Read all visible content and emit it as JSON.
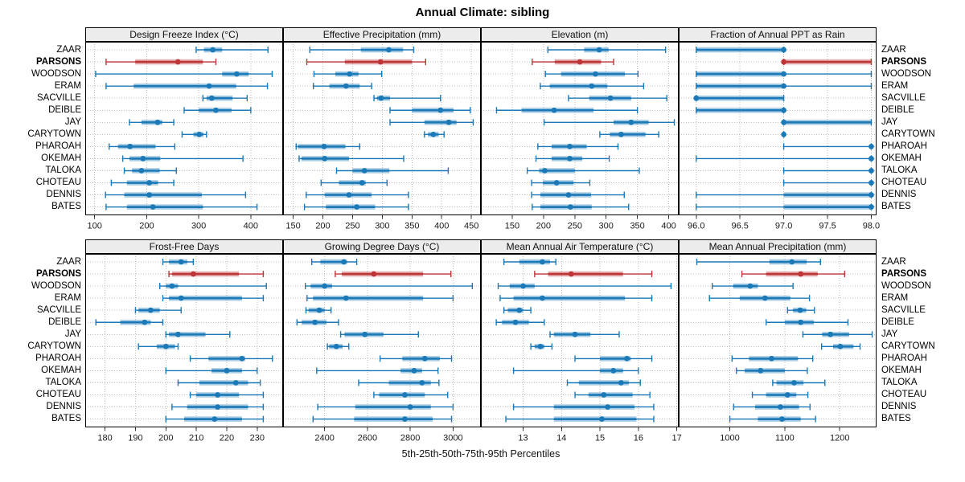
{
  "title": "Annual Climate: sibling",
  "xlabel": "5th-25th-50th-75th-95th Percentiles",
  "stations": [
    "ZAAR",
    "PARSONS",
    "WOODSON",
    "ERAM",
    "SACVILLE",
    "DEIBLE",
    "JAY",
    "CARYTOWN",
    "PHAROAH",
    "OKEMAH",
    "TALOKA",
    "CHOTEAU",
    "DENNIS",
    "BATES"
  ],
  "highlight_station": "PARSONS",
  "percentile_levels": [
    5,
    25,
    50,
    75,
    95
  ],
  "colors": {
    "series": "#1b79b7",
    "highlight": "#be3538",
    "strip_bg": "#ececec",
    "grid": "#bdbdbd",
    "border": "#000000",
    "tick_text": "#1a1a1a"
  },
  "chart_data": {
    "type": "scatter",
    "subtype": "percentile-dotplot-trellis",
    "layout": "2 rows x 4 columns, shared station y-axis, grid on, no legend",
    "row_note": "each row: thin line 5th-95th with end caps, translucent thick band 25th-75th, dot at 50th",
    "panels": [
      {
        "title": "Design Freeze Index (°C)",
        "row": 0,
        "xlim": [
          82,
          462
        ],
        "ticks": [
          100,
          200,
          300,
          400
        ],
        "tick_labels": [
          "100",
          "200",
          "300",
          "400"
        ],
        "values": [
          [
            295,
            310,
            327,
            345,
            433
          ],
          [
            122,
            178,
            260,
            308,
            333
          ],
          [
            102,
            345,
            373,
            396,
            441
          ],
          [
            122,
            175,
            320,
            372,
            432
          ],
          [
            308,
            315,
            325,
            365,
            393
          ],
          [
            272,
            300,
            333,
            363,
            400
          ],
          [
            167,
            190,
            221,
            230,
            252
          ],
          [
            268,
            290,
            301,
            309,
            315
          ],
          [
            128,
            145,
            168,
            217,
            254
          ],
          [
            154,
            167,
            193,
            226,
            385
          ],
          [
            157,
            172,
            190,
            225,
            257
          ],
          [
            132,
            162,
            205,
            222,
            252
          ],
          [
            121,
            157,
            205,
            306,
            390
          ],
          [
            122,
            162,
            212,
            308,
            412
          ]
        ]
      },
      {
        "title": "Effective Precipitation (mm)",
        "row": 0,
        "xlim": [
          133,
          466
        ],
        "ticks": [
          150,
          200,
          250,
          300,
          350,
          400,
          450
        ],
        "tick_labels": [
          "150",
          "200",
          "250",
          "300",
          "350",
          "400",
          "450"
        ],
        "values": [
          [
            178,
            264,
            311,
            335,
            353
          ],
          [
            173,
            237,
            297,
            350,
            373
          ],
          [
            185,
            221,
            245,
            260,
            299
          ],
          [
            184,
            211,
            239,
            262,
            282
          ],
          [
            286,
            291,
            298,
            313,
            398
          ],
          [
            313,
            350,
            398,
            420,
            448
          ],
          [
            313,
            371,
            412,
            425,
            453
          ],
          [
            371,
            377,
            386,
            395,
            404
          ],
          [
            155,
            158,
            202,
            238,
            262
          ],
          [
            160,
            164,
            203,
            244,
            336
          ],
          [
            223,
            250,
            270,
            312,
            411
          ],
          [
            197,
            227,
            266,
            272,
            308
          ],
          [
            172,
            203,
            244,
            282,
            344
          ],
          [
            169,
            205,
            257,
            288,
            344
          ]
        ]
      },
      {
        "title": "Elevation (m)",
        "row": 0,
        "xlim": [
          100,
          416
        ],
        "ticks": [
          150,
          200,
          250,
          300,
          350,
          400
        ],
        "tick_labels": [
          "150",
          "200",
          "250",
          "300",
          "350",
          "400"
        ],
        "values": [
          [
            207,
            265,
            289,
            304,
            395
          ],
          [
            182,
            218,
            258,
            292,
            312
          ],
          [
            203,
            228,
            283,
            330,
            351
          ],
          [
            195,
            210,
            277,
            302,
            360
          ],
          [
            240,
            273,
            307,
            340,
            397
          ],
          [
            125,
            165,
            217,
            280,
            350
          ],
          [
            201,
            312,
            340,
            368,
            409
          ],
          [
            290,
            306,
            324,
            363,
            384
          ],
          [
            191,
            213,
            242,
            269,
            319
          ],
          [
            188,
            213,
            242,
            262,
            305
          ],
          [
            174,
            193,
            202,
            250,
            353
          ],
          [
            181,
            199,
            221,
            248,
            274
          ],
          [
            181,
            195,
            240,
            276,
            329
          ],
          [
            182,
            195,
            243,
            277,
            336
          ]
        ]
      },
      {
        "title": "Fraction of Annual PPT as Rain",
        "row": 0,
        "xlim": [
          95.8,
          98.06
        ],
        "ticks": [
          96.0,
          96.5,
          97.0,
          97.5,
          98.0
        ],
        "tick_labels": [
          "96.0",
          "96.5",
          "97.0",
          "97.5",
          "98.0"
        ],
        "values": [
          [
            96,
            96,
            97,
            97,
            97
          ],
          [
            97,
            97,
            97,
            98,
            98
          ],
          [
            96,
            96,
            97,
            97,
            98
          ],
          [
            96,
            96,
            97,
            97,
            98
          ],
          [
            96,
            96,
            96,
            97,
            97
          ],
          [
            96,
            96,
            97,
            97,
            97
          ],
          [
            97,
            97,
            97,
            98,
            98
          ],
          [
            97,
            97,
            97,
            97,
            97
          ],
          [
            97,
            98,
            98,
            98,
            98
          ],
          [
            96,
            98,
            98,
            98,
            98
          ],
          [
            97,
            98,
            98,
            98,
            98
          ],
          [
            97,
            98,
            98,
            98,
            98
          ],
          [
            96,
            97,
            98,
            98,
            98
          ],
          [
            96,
            97,
            98,
            98,
            98
          ]
        ]
      },
      {
        "title": "Frost-Free Days",
        "row": 1,
        "xlim": [
          173.5,
          238.5
        ],
        "ticks": [
          180,
          190,
          200,
          210,
          220,
          230
        ],
        "tick_labels": [
          "180",
          "190",
          "200",
          "210",
          "220",
          "230"
        ],
        "values": [
          [
            199,
            201,
            205,
            207,
            209
          ],
          [
            201,
            202,
            209,
            224,
            232
          ],
          [
            198,
            200,
            202,
            204,
            233
          ],
          [
            199,
            201,
            205,
            225,
            232
          ],
          [
            190,
            191,
            195,
            198,
            205
          ],
          [
            177,
            185,
            193,
            195,
            199
          ],
          [
            200,
            201,
            204,
            213,
            221
          ],
          [
            191,
            197,
            200,
            203,
            204
          ],
          [
            208,
            214,
            225,
            226,
            235
          ],
          [
            200,
            215,
            220,
            225,
            230
          ],
          [
            204,
            211,
            223,
            227,
            231
          ],
          [
            208,
            210,
            217,
            224,
            232
          ],
          [
            202,
            207,
            217,
            227,
            232
          ],
          [
            200,
            206,
            216,
            225,
            232
          ]
        ]
      },
      {
        "title": "Growing Degree Days (°C)",
        "row": 1,
        "xlim": [
          2206,
          3130
        ],
        "ticks": [
          2400,
          2600,
          2800,
          3000
        ],
        "tick_labels": [
          "2400",
          "2600",
          "2800",
          "3000"
        ],
        "values": [
          [
            2340,
            2380,
            2490,
            2505,
            2550
          ],
          [
            2450,
            2480,
            2630,
            2860,
            2990
          ],
          [
            2310,
            2335,
            2400,
            2435,
            3090
          ],
          [
            2318,
            2346,
            2500,
            2860,
            3000
          ],
          [
            2313,
            2325,
            2375,
            2400,
            2430
          ],
          [
            2271,
            2293,
            2355,
            2409,
            2465
          ],
          [
            2475,
            2493,
            2588,
            2675,
            2838
          ],
          [
            2413,
            2421,
            2455,
            2484,
            2513
          ],
          [
            2659,
            2763,
            2868,
            2938,
            2993
          ],
          [
            2363,
            2755,
            2818,
            2855,
            2930
          ],
          [
            2559,
            2700,
            2855,
            2896,
            2934
          ],
          [
            2630,
            2655,
            2775,
            2868,
            2975
          ],
          [
            2368,
            2543,
            2800,
            2896,
            3000
          ],
          [
            2346,
            2538,
            2775,
            2905,
            2993
          ]
        ]
      },
      {
        "title": "Mean Annual Air Temperature (°C)",
        "row": 1,
        "xlim": [
          11.9,
          17.05
        ],
        "ticks": [
          13,
          14,
          15,
          16,
          17
        ],
        "tick_labels": [
          "13",
          "14",
          "15",
          "16",
          "17"
        ],
        "values": [
          [
            12.5,
            12.9,
            13.5,
            13.7,
            13.85
          ],
          [
            13.3,
            13.65,
            14.25,
            15.6,
            16.35
          ],
          [
            12.35,
            12.65,
            13.0,
            13.3,
            16.85
          ],
          [
            12.4,
            12.75,
            13.5,
            15.65,
            16.35
          ],
          [
            12.5,
            12.6,
            12.9,
            13.0,
            13.2
          ],
          [
            12.3,
            12.45,
            12.8,
            13.15,
            13.55
          ],
          [
            13.7,
            13.8,
            14.35,
            14.75,
            15.5
          ],
          [
            13.2,
            13.3,
            13.45,
            13.55,
            13.75
          ],
          [
            14.35,
            15.0,
            15.7,
            15.8,
            16.35
          ],
          [
            12.75,
            15.0,
            15.35,
            15.6,
            16.0
          ],
          [
            14.15,
            14.45,
            15.55,
            15.75,
            16.05
          ],
          [
            14.35,
            14.7,
            15.1,
            15.85,
            16.3
          ],
          [
            12.75,
            13.8,
            15.2,
            15.9,
            16.4
          ],
          [
            12.55,
            13.8,
            15.05,
            15.95,
            16.4
          ]
        ]
      },
      {
        "title": "Mean Annual Precipitation (mm)",
        "row": 1,
        "xlim": [
          907,
          1267
        ],
        "ticks": [
          1000,
          1100,
          1200
        ],
        "tick_labels": [
          "1000",
          "1100",
          "1200"
        ],
        "values": [
          [
            940,
            1072,
            1113,
            1140,
            1165
          ],
          [
            1022,
            1066,
            1129,
            1160,
            1209
          ],
          [
            968,
            1006,
            1037,
            1051,
            1115
          ],
          [
            963,
            1018,
            1064,
            1110,
            1145
          ],
          [
            1105,
            1115,
            1128,
            1139,
            1154
          ],
          [
            1066,
            1100,
            1129,
            1153,
            1215
          ],
          [
            1133,
            1168,
            1183,
            1217,
            1259
          ],
          [
            1167,
            1188,
            1201,
            1225,
            1237
          ],
          [
            1004,
            1035,
            1076,
            1124,
            1151
          ],
          [
            1012,
            1027,
            1056,
            1100,
            1141
          ],
          [
            1078,
            1085,
            1117,
            1134,
            1173
          ],
          [
            1041,
            1066,
            1105,
            1121,
            1142
          ],
          [
            1007,
            1046,
            1092,
            1126,
            1146
          ],
          [
            1000,
            1051,
            1095,
            1129,
            1156
          ]
        ]
      }
    ]
  }
}
